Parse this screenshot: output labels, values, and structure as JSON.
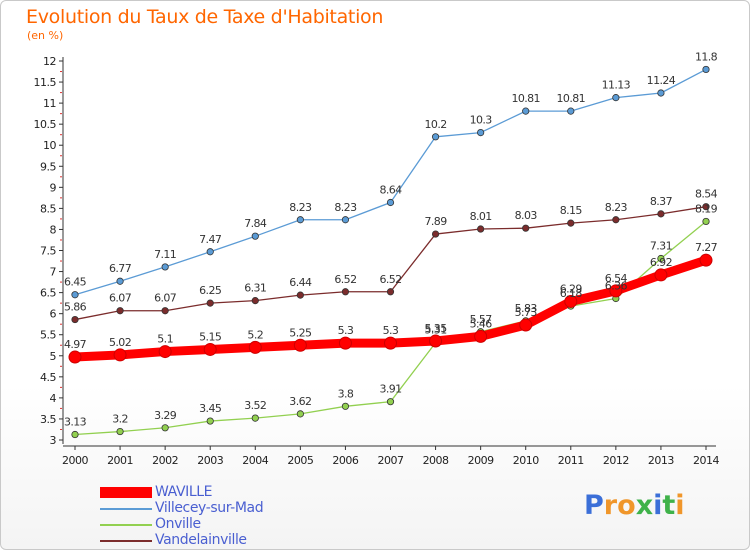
{
  "title": "Evolution du Taux de Taxe d'Habitation",
  "subtitle": "(en %)",
  "logo_text": "Proxiti",
  "logo_colors": [
    "#3b6fd8",
    "#f0962a",
    "#f0962a",
    "#3fb24a",
    "#3b6fd8",
    "#3fb24a",
    "#f0962a"
  ],
  "chart_data": {
    "type": "line",
    "title": "Evolution du Taux de Taxe d'Habitation",
    "ylabel": "(en %)",
    "xlabel": "",
    "x": [
      "2000",
      "2001",
      "2002",
      "2003",
      "2004",
      "2005",
      "2006",
      "2007",
      "2008",
      "2009",
      "2010",
      "2011",
      "2012",
      "2013",
      "2014"
    ],
    "ylim": [
      3,
      12
    ],
    "yticks": [
      "3",
      "3.5",
      "4",
      "4.5",
      "5",
      "5.5",
      "6",
      "6.5",
      "7",
      "7.5",
      "8",
      "8.5",
      "9",
      "9.5",
      "10",
      "10.5",
      "11",
      "11.5",
      "12"
    ],
    "grid": false,
    "legend_position": "bottom-left",
    "series": [
      {
        "name": "WAVILLE",
        "color": "#ff0000",
        "values": [
          4.97,
          5.02,
          5.1,
          5.15,
          5.2,
          5.25,
          5.3,
          5.3,
          5.35,
          5.46,
          5.73,
          6.29,
          6.54,
          6.92,
          7.27
        ],
        "labels": [
          "4.97",
          "5.02",
          "5.1",
          "5.15",
          "5.2",
          "5.25",
          "5.3",
          "5.3",
          "5.35",
          "5.46",
          "5.73",
          "6.29",
          "6.54",
          "6.92",
          "7.27"
        ]
      },
      {
        "name": "Villecey-sur-Mad",
        "color": "#5b9bd5",
        "values": [
          6.45,
          6.77,
          7.11,
          7.47,
          7.84,
          8.23,
          8.23,
          8.64,
          10.2,
          10.3,
          10.81,
          10.81,
          11.13,
          11.24,
          11.8
        ],
        "labels": [
          "6.45",
          "6.77",
          "7.11",
          "7.47",
          "7.84",
          "8.23",
          "8.23",
          "8.64",
          "10.2",
          "10.3",
          "10.81",
          "10.81",
          "11.13",
          "11.24",
          "11.8"
        ]
      },
      {
        "name": "Onville",
        "color": "#92d050",
        "values": [
          3.13,
          3.2,
          3.29,
          3.45,
          3.52,
          3.62,
          3.8,
          3.91,
          5.31,
          5.57,
          5.83,
          6.18,
          6.36,
          7.31,
          8.19
        ],
        "labels": [
          "3.13",
          "3.2",
          "3.29",
          "3.45",
          "3.52",
          "3.62",
          "3.8",
          "3.91",
          "5.31",
          "5.57",
          "5.83",
          "6.18",
          "6.36",
          "7.31",
          "8.19"
        ]
      },
      {
        "name": "Vandelainville",
        "color": "#7b2c2c",
        "values": [
          5.86,
          6.07,
          6.07,
          6.25,
          6.31,
          6.44,
          6.52,
          6.52,
          7.89,
          8.01,
          8.03,
          8.15,
          8.23,
          8.37,
          8.54
        ],
        "labels": [
          "5.86",
          "6.07",
          "6.07",
          "6.25",
          "6.31",
          "6.44",
          "6.52",
          "6.52",
          "7.89",
          "8.01",
          "8.03",
          "8.15",
          "8.23",
          "8.37",
          "8.54"
        ]
      }
    ]
  },
  "legend": [
    {
      "label": "WAVILLE",
      "color": "#ff0000",
      "thick": true
    },
    {
      "label": "Villecey-sur-Mad",
      "color": "#5b9bd5",
      "thick": false
    },
    {
      "label": "Onville",
      "color": "#92d050",
      "thick": false
    },
    {
      "label": "Vandelainville",
      "color": "#7b2c2c",
      "thick": false
    }
  ]
}
